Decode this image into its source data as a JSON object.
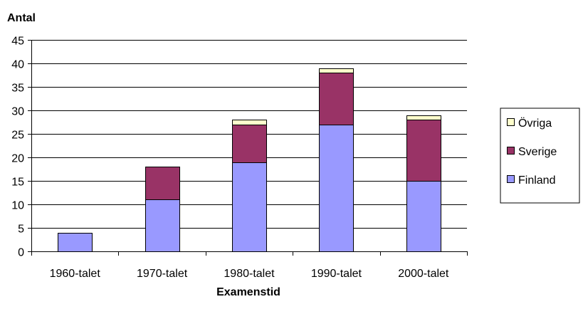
{
  "chart_data": {
    "type": "bar",
    "stacked": true,
    "title": "",
    "xlabel": "Examenstid",
    "ylabel": "Antal",
    "ylim": [
      0,
      45
    ],
    "y_ticks": [
      0,
      5,
      10,
      15,
      20,
      25,
      30,
      35,
      40,
      45
    ],
    "grid": true,
    "legend_position": "right",
    "categories": [
      "1960-talet",
      "1970-talet",
      "1980-talet",
      "1990-talet",
      "2000-talet"
    ],
    "series": [
      {
        "name": "Finland",
        "color": "#9999ff",
        "values": [
          4,
          11,
          19,
          27,
          15
        ]
      },
      {
        "name": "Sverige",
        "color": "#993366",
        "values": [
          0,
          7,
          8,
          11,
          13
        ]
      },
      {
        "name": "Övriga",
        "color": "#ffffcc",
        "values": [
          0,
          0,
          1,
          1,
          1
        ]
      }
    ],
    "legend_order": [
      "Övriga",
      "Sverige",
      "Finland"
    ]
  }
}
